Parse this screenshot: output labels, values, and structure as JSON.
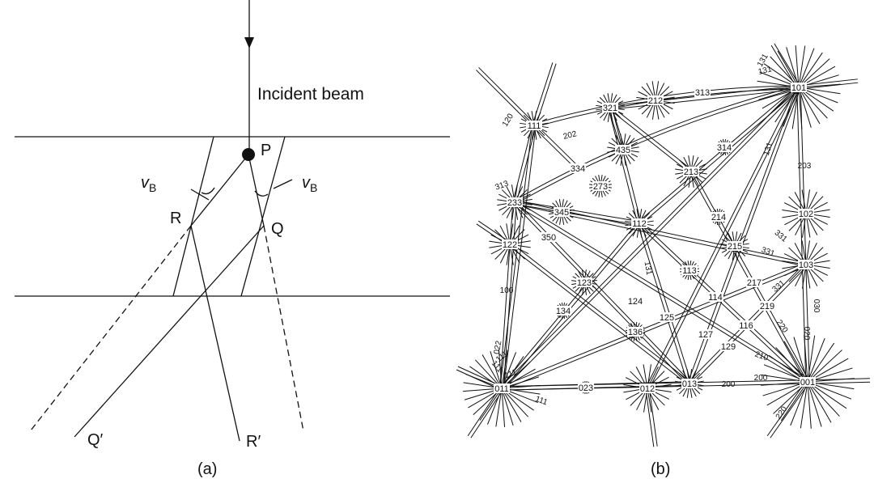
{
  "panel_a": {
    "incident_beam_label": "Incident beam",
    "point_p": "P",
    "point_r": "R",
    "point_q": "Q",
    "point_q_prime": "Q′",
    "point_r_prime": "R′",
    "bragg_left_v": "v",
    "bragg_left_sub": "B",
    "bragg_right_v": "v",
    "bragg_right_sub": "B",
    "caption": "(a)"
  },
  "panel_b": {
    "caption": "(b)",
    "poles": [
      "101",
      "212",
      "321",
      "111",
      "313",
      "314",
      "435",
      "334",
      "213",
      "273",
      "233",
      "345",
      "112",
      "214",
      "102",
      "122",
      "350",
      "215",
      "103",
      "113",
      "123",
      "114",
      "217",
      "124",
      "125",
      "219",
      "116",
      "136",
      "127",
      "129",
      "134",
      "011",
      "023",
      "012",
      "013",
      "001"
    ],
    "band_labels": [
      "120",
      "202",
      "131",
      "131",
      "313",
      "313",
      "131",
      "203",
      "331",
      "331",
      "331",
      "131",
      "100",
      "030",
      "022",
      "111",
      "111",
      "111",
      "210",
      "220",
      "020",
      "200",
      "200",
      "220",
      "111"
    ]
  }
}
